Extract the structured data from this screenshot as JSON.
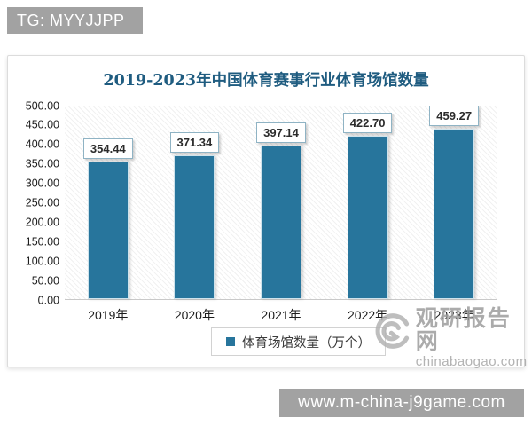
{
  "badge": {
    "text": "TG: MYYJJPP"
  },
  "chart_data": {
    "type": "bar",
    "title": "2019-2023年中国体育赛事行业体育场馆数量",
    "categories": [
      "2019年",
      "2020年",
      "2021年",
      "2022年",
      "2023年"
    ],
    "values": [
      354.44,
      371.34,
      397.14,
      422.7,
      459.27
    ],
    "value_labels": [
      "354.44",
      "371.34",
      "397.14",
      "422.70",
      "459.27"
    ],
    "series_name": "体育场馆数量（万个）",
    "legend": [
      "体育场馆数量（万个）"
    ],
    "legend_position": "bottom",
    "xlabel": "",
    "ylabel": "",
    "ylim": [
      0,
      500
    ],
    "ytick_step": 50,
    "ytick_labels": [
      "0.00",
      "50.00",
      "100.00",
      "150.00",
      "200.00",
      "250.00",
      "300.00",
      "350.00",
      "400.00",
      "450.00",
      "500.00"
    ],
    "grid": false,
    "plot_background": "diagonal-hatch"
  },
  "brand_watermark": {
    "site_name": "观研报告网",
    "site_url": "chinabaogao.com"
  },
  "footer": {
    "url": "www.m-china-j9game.com"
  },
  "colors": {
    "bar": "#27759c",
    "title": "#1f5c80",
    "gray": "#a2a2a2",
    "watermark": "#a6a6a6"
  }
}
